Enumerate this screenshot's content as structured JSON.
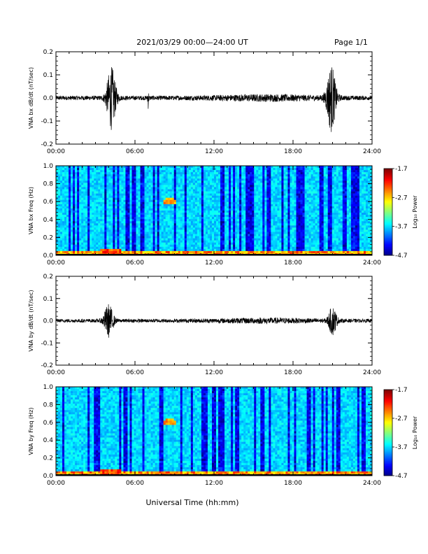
{
  "header": {
    "title": "2021/03/29  00:00—24:00 UT",
    "page": "Page 1/1"
  },
  "xlabel": "Universal Time (hh:mm)",
  "chart_data": [
    {
      "type": "line",
      "ylabel": "VNA bx dB/dt (nT/sec)",
      "xlim": [
        0,
        24
      ],
      "ylim": [
        -0.2,
        0.2
      ],
      "xtick_labels": [
        "00:00",
        "06:00",
        "12:00",
        "18:00",
        "24:00"
      ],
      "ytick_labels": [
        "0.2",
        "0.1",
        "0.0",
        "-0.1",
        "-0.2"
      ],
      "yticks": [
        0.2,
        0.1,
        0.0,
        -0.1,
        -0.2
      ],
      "bursts": [
        {
          "t": 4.2,
          "width": 0.35,
          "amp": 0.13
        },
        {
          "t": 7.0,
          "width": 0.05,
          "amp": 0.04
        },
        {
          "t": 20.9,
          "width": 0.35,
          "amp": 0.14
        }
      ],
      "baseline_amp": 0.012
    },
    {
      "type": "heatmap",
      "ylabel": "VNA bx Freq (Hz)",
      "xlim": [
        0,
        24
      ],
      "ylim": [
        0,
        1.0
      ],
      "xtick_labels": [
        "00:00",
        "06:00",
        "12:00",
        "18:00",
        "24:00"
      ],
      "ytick_labels": [
        "1.0",
        "0.8",
        "0.6",
        "0.4",
        "0.2",
        "0.0"
      ],
      "yticks": [
        1.0,
        0.8,
        0.6,
        0.4,
        0.2,
        0.0
      ],
      "colorbar": {
        "label": "Log₁₀ Power",
        "ticks": [
          "-1.7",
          "-2.7",
          "-3.7",
          "-4.7"
        ],
        "min": -4.7,
        "max": -1.7
      },
      "features": [
        {
          "t": 8.6,
          "f": 0.6,
          "note": "Pc1 band"
        },
        {
          "t": 4.2,
          "f": 0.05,
          "note": "low-frequency enhancement"
        }
      ]
    },
    {
      "type": "line",
      "ylabel": "VNA by dB/dt (nT/sec)",
      "xlim": [
        0,
        24
      ],
      "ylim": [
        -0.2,
        0.2
      ],
      "xtick_labels": [
        "00:00",
        "06:00",
        "12:00",
        "18:00",
        "24:00"
      ],
      "ytick_labels": [
        "0.2",
        "0.1",
        "0.0",
        "-0.1",
        "-0.2"
      ],
      "yticks": [
        0.2,
        0.1,
        0.0,
        -0.1,
        -0.2
      ],
      "bursts": [
        {
          "t": 4.0,
          "width": 0.35,
          "amp": 0.07
        },
        {
          "t": 21.0,
          "width": 0.3,
          "amp": 0.06
        }
      ],
      "baseline_amp": 0.01
    },
    {
      "type": "heatmap",
      "ylabel": "VNA by Freq (Hz)",
      "xlim": [
        0,
        24
      ],
      "ylim": [
        0,
        1.0
      ],
      "xtick_labels": [
        "00:00",
        "06:00",
        "12:00",
        "18:00",
        "24:00"
      ],
      "ytick_labels": [
        "1.0",
        "0.8",
        "0.6",
        "0.4",
        "0.2",
        "0.0"
      ],
      "yticks": [
        1.0,
        0.8,
        0.6,
        0.4,
        0.2,
        0.0
      ],
      "colorbar": {
        "label": "Log₁₀ Power",
        "ticks": [
          "-1.7",
          "-2.7",
          "-3.7",
          "-4.7"
        ],
        "min": -4.7,
        "max": -1.7
      },
      "features": [
        {
          "t": 8.6,
          "f": 0.6,
          "note": "Pc1 band"
        },
        {
          "t": 4.2,
          "f": 0.05,
          "note": "low-frequency enhancement"
        }
      ]
    }
  ]
}
